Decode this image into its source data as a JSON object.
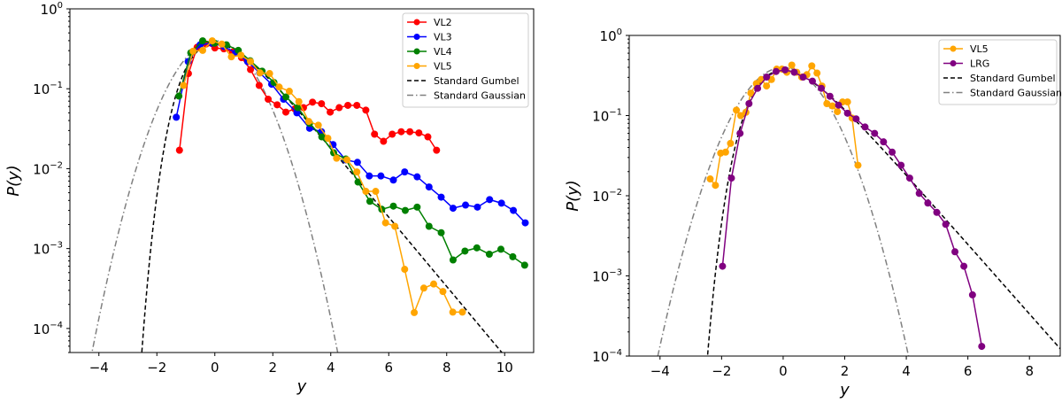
{
  "chart_data": [
    {
      "type": "line",
      "xlabel": "y",
      "ylabel": "P(y)",
      "xlim": [
        -5,
        11
      ],
      "ylim": [
        5e-05,
        1
      ],
      "yscale": "log",
      "grid": false,
      "legend": "upper right",
      "xticks": [
        -4,
        -2,
        0,
        2,
        4,
        6,
        8,
        10
      ],
      "ytick_exponents": [
        0,
        -1,
        -2,
        -3,
        -4
      ],
      "series": [
        {
          "name": "VL2",
          "color": "#ff0000",
          "marker": "o",
          "x": [
            -1.22,
            -0.91,
            -0.61,
            -0.3,
            0.0,
            0.31,
            0.61,
            0.92,
            1.23,
            1.53,
            1.84,
            2.15,
            2.45,
            2.76,
            3.06,
            3.37,
            3.68,
            3.98,
            4.29,
            4.59,
            4.9,
            5.21,
            5.51,
            5.82,
            6.12,
            6.43,
            6.73,
            7.04,
            7.35,
            7.65
          ],
          "y": [
            0.017,
            0.155,
            0.331,
            0.363,
            0.324,
            0.316,
            0.288,
            0.245,
            0.174,
            0.11,
            0.074,
            0.063,
            0.051,
            0.056,
            0.058,
            0.068,
            0.065,
            0.051,
            0.058,
            0.062,
            0.062,
            0.054,
            0.027,
            0.022,
            0.027,
            0.029,
            0.029,
            0.028,
            0.025,
            0.017
          ]
        },
        {
          "name": "VL3",
          "color": "#0000ff",
          "marker": "o",
          "x": [
            -1.33,
            -0.92,
            -0.51,
            -0.1,
            0.31,
            0.72,
            1.13,
            1.55,
            1.96,
            2.37,
            2.83,
            3.27,
            3.68,
            4.08,
            4.51,
            4.92,
            5.33,
            5.73,
            6.16,
            6.55,
            6.98,
            7.39,
            7.81,
            8.22,
            8.65,
            9.06,
            9.48,
            9.89,
            10.3,
            10.71
          ],
          "y": [
            0.044,
            0.219,
            0.355,
            0.372,
            0.339,
            0.282,
            0.219,
            0.158,
            0.114,
            0.074,
            0.05,
            0.032,
            0.029,
            0.02,
            0.0129,
            0.012,
            0.0081,
            0.0081,
            0.0072,
            0.0091,
            0.0079,
            0.0059,
            0.0044,
            0.0032,
            0.0035,
            0.0033,
            0.0041,
            0.0037,
            0.003,
            0.0021
          ]
        },
        {
          "name": "VL4",
          "color": "#008000",
          "marker": "o",
          "x": [
            -1.24,
            -0.83,
            -0.42,
            -0.01,
            0.4,
            0.81,
            1.22,
            1.63,
            2.04,
            2.45,
            2.86,
            3.27,
            3.69,
            4.1,
            4.52,
            4.94,
            5.35,
            5.76,
            6.16,
            6.57,
            6.98,
            7.39,
            7.81,
            8.22,
            8.63,
            9.04,
            9.47,
            9.87,
            10.28,
            10.69
          ],
          "y": [
            0.081,
            0.282,
            0.398,
            0.372,
            0.355,
            0.302,
            0.224,
            0.166,
            0.12,
            0.079,
            0.058,
            0.037,
            0.025,
            0.0158,
            0.0132,
            0.0068,
            0.0039,
            0.0031,
            0.0034,
            0.003,
            0.0033,
            0.0019,
            0.00158,
            0.00072,
            0.00093,
            0.00102,
            0.00085,
            0.00098,
            0.00079,
            0.00062
          ]
        },
        {
          "name": "VL5",
          "color": "#ffa500",
          "marker": "o",
          "x": [
            -1.08,
            -0.75,
            -0.42,
            -0.09,
            0.24,
            0.57,
            0.9,
            1.23,
            1.56,
            1.89,
            2.22,
            2.57,
            2.9,
            3.24,
            3.57,
            3.9,
            4.2,
            4.56,
            4.9,
            5.21,
            5.55,
            5.89,
            6.21,
            6.55,
            6.88,
            7.21,
            7.55,
            7.87,
            8.21,
            8.54
          ],
          "y": [
            0.11,
            0.295,
            0.302,
            0.398,
            0.363,
            0.251,
            0.263,
            0.219,
            0.158,
            0.155,
            0.105,
            0.093,
            0.069,
            0.039,
            0.035,
            0.024,
            0.0135,
            0.0129,
            0.0091,
            0.0052,
            0.0052,
            0.0021,
            0.0019,
            0.00055,
            0.000158,
            0.00032,
            0.00036,
            0.00029,
            0.00016,
            0.00016
          ]
        },
        {
          "name": "Standard Gumbel",
          "color": "#000000",
          "style": "dashed",
          "function": "gumbel"
        },
        {
          "name": "Standard Gaussian",
          "color": "#808080",
          "style": "dashdot",
          "function": "gaussian"
        }
      ]
    },
    {
      "type": "line",
      "xlabel": "y",
      "ylabel": "P(y)",
      "xlim": [
        -5,
        9
      ],
      "ylim": [
        0.0001,
        1
      ],
      "yscale": "log",
      "grid": false,
      "legend": "upper right",
      "xticks": [
        -4,
        -2,
        0,
        2,
        4,
        6,
        8
      ],
      "ytick_exponents": [
        0,
        -1,
        -2,
        -3,
        -4
      ],
      "series": [
        {
          "name": "VL5",
          "color": "#ffa500",
          "marker": "o",
          "x": [
            -2.37,
            -2.2,
            -2.03,
            -1.87,
            -1.71,
            -1.52,
            -1.38,
            -1.21,
            -1.05,
            -0.87,
            -0.71,
            -0.54,
            -0.38,
            -0.21,
            -0.04,
            0.12,
            0.28,
            0.44,
            0.6,
            0.77,
            0.93,
            1.1,
            1.26,
            1.42,
            1.6,
            1.76,
            1.93,
            2.09,
            2.24,
            2.43
          ],
          "y": [
            0.0162,
            0.0135,
            0.034,
            0.035,
            0.045,
            0.117,
            0.1,
            0.11,
            0.191,
            0.251,
            0.282,
            0.234,
            0.282,
            0.38,
            0.38,
            0.347,
            0.427,
            0.347,
            0.302,
            0.324,
            0.417,
            0.339,
            0.234,
            0.141,
            0.132,
            0.112,
            0.148,
            0.148,
            0.093,
            0.024
          ]
        },
        {
          "name": "LRG",
          "color": "#800080",
          "marker": "o",
          "x": [
            -1.97,
            -1.68,
            -1.4,
            -1.11,
            -0.83,
            -0.54,
            -0.23,
            0.06,
            0.36,
            0.65,
            0.95,
            1.24,
            1.52,
            1.8,
            2.09,
            2.37,
            2.66,
            2.97,
            3.26,
            3.54,
            3.83,
            4.11,
            4.42,
            4.7,
            4.99,
            5.28,
            5.58,
            5.87,
            6.15,
            6.45
          ],
          "y": [
            0.00132,
            0.0166,
            0.06,
            0.141,
            0.219,
            0.302,
            0.355,
            0.372,
            0.347,
            0.302,
            0.269,
            0.219,
            0.174,
            0.135,
            0.107,
            0.091,
            0.072,
            0.06,
            0.047,
            0.035,
            0.024,
            0.0166,
            0.0107,
            0.0081,
            0.0062,
            0.0044,
            0.002,
            0.00132,
            0.00058,
            0.000132
          ]
        },
        {
          "name": "Standard Gumbel",
          "color": "#000000",
          "style": "dashed",
          "function": "gumbel"
        },
        {
          "name": "Standard Gaussian",
          "color": "#808080",
          "style": "dashdot",
          "function": "gaussian"
        }
      ]
    }
  ]
}
